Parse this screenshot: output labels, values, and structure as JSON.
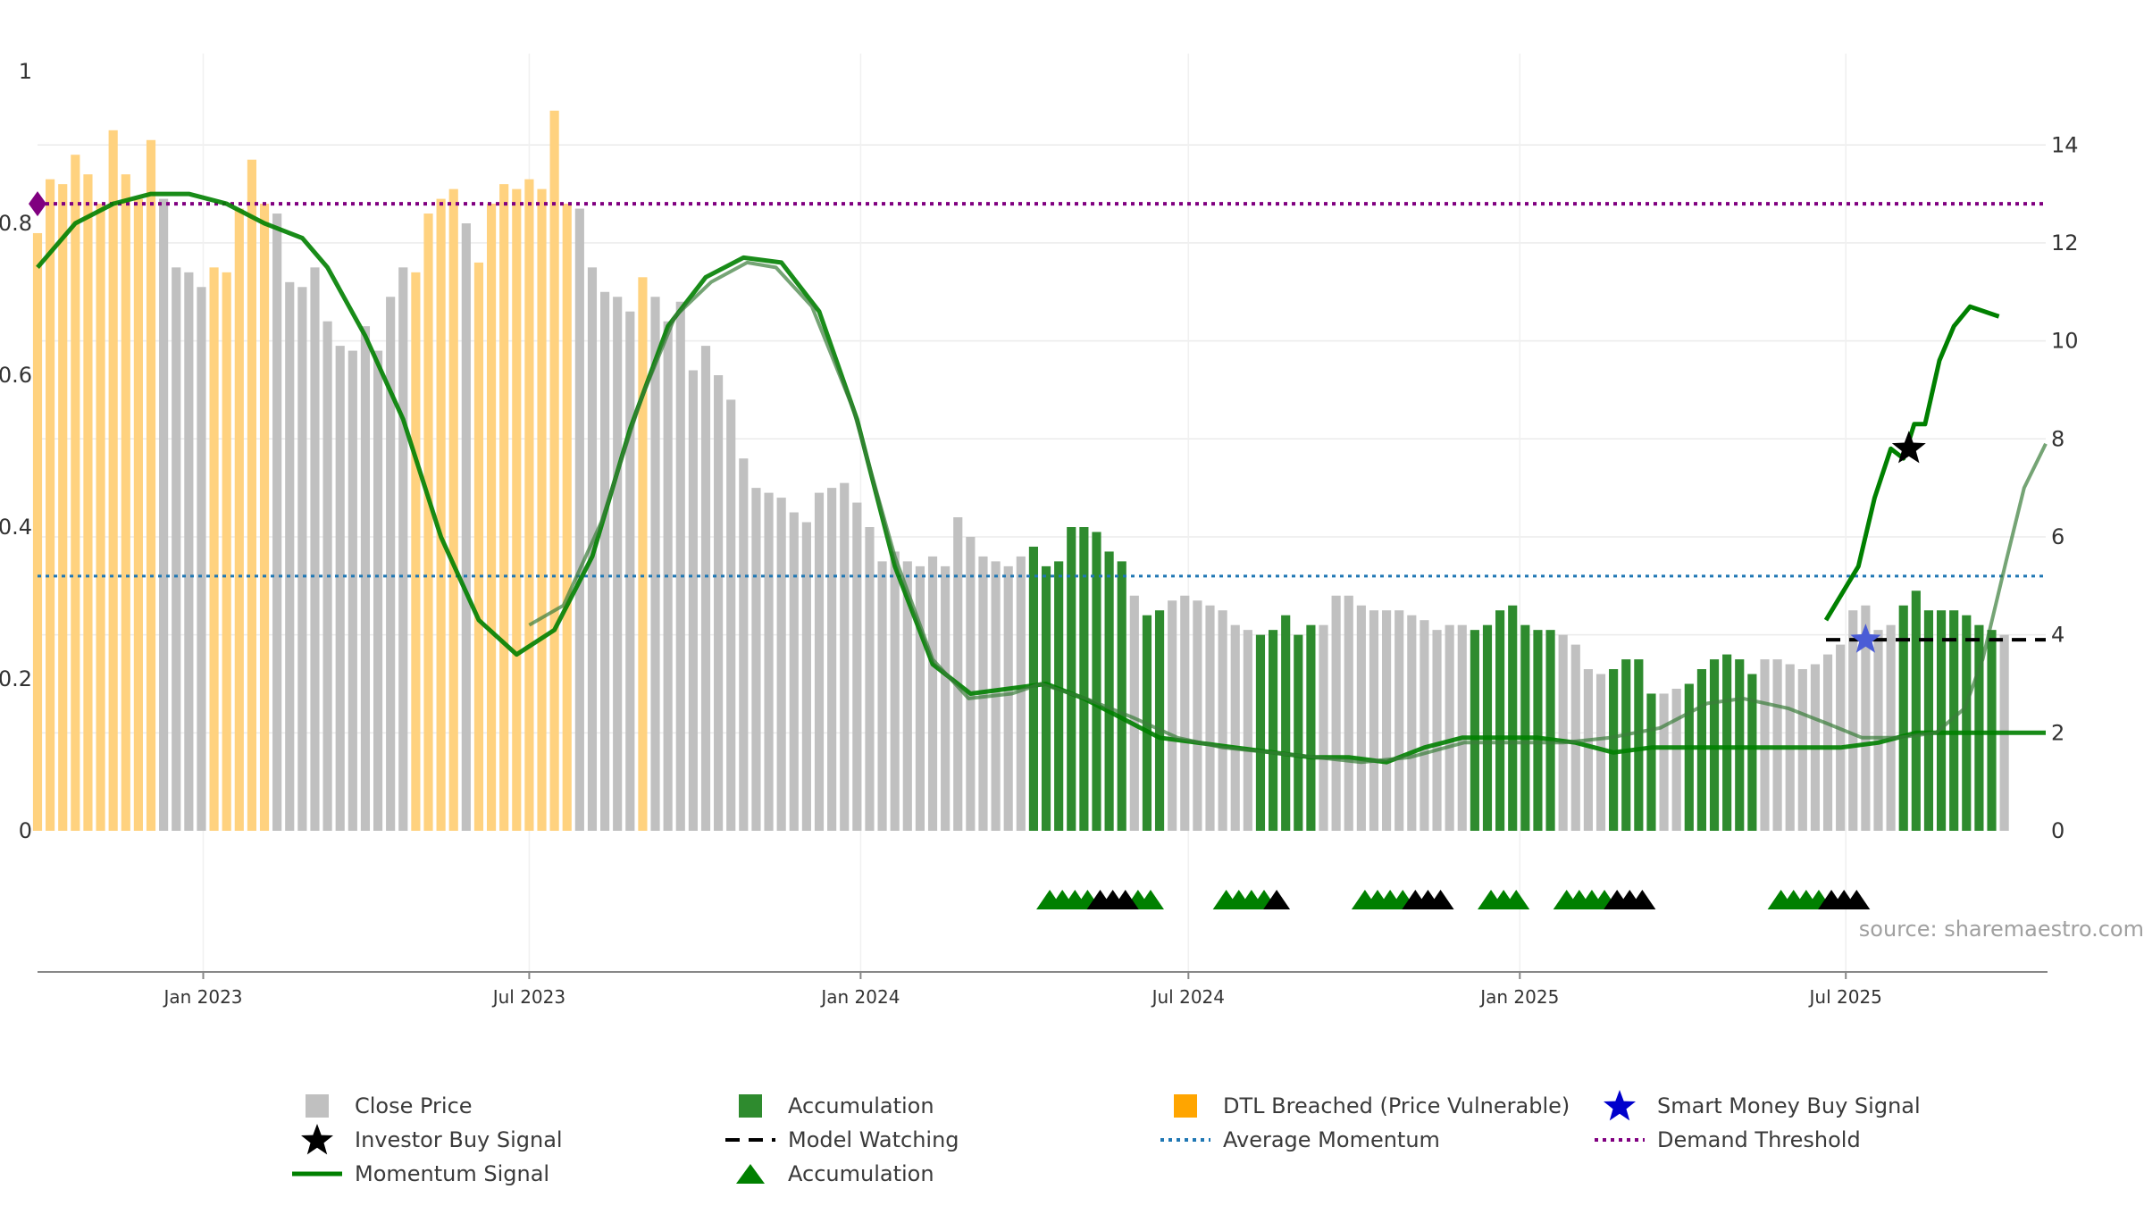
{
  "chart_data": {
    "type": "bar",
    "source_note": "source: sharemaestro.com",
    "left_axis": {
      "range": [
        0,
        1
      ],
      "ticks": [
        0,
        0.2,
        0.4,
        0.6,
        0.8,
        1
      ],
      "tick_labels": [
        "0",
        "0.2",
        "0.4",
        "0.6",
        "0.8",
        "1"
      ]
    },
    "right_axis": {
      "range": [
        0,
        15.5
      ],
      "ticks": [
        0,
        2,
        4,
        6,
        8,
        10,
        12,
        14
      ],
      "tick_labels": [
        "0",
        "2",
        "4",
        "6",
        "8",
        "10",
        "12",
        "14"
      ]
    },
    "x_axis": {
      "start": "2022-10-01",
      "end": "2025-10-20",
      "ticks": [
        "2023-01-01",
        "2023-07-01",
        "2024-01-01",
        "2024-07-01",
        "2025-01-01",
        "2025-07-01"
      ],
      "tick_labels": [
        "Jan 2023",
        "Jul 2023",
        "Jan 2024",
        "Jul 2024",
        "Jan 2025",
        "Jul 2025"
      ]
    },
    "grid": true,
    "legend_placement": "bottom",
    "colors": {
      "close": "#c0c0c0",
      "accumulation": "#2e8b2e",
      "dtl": "#ffd27f",
      "momentum": "#008000",
      "average": "#1f77b4",
      "threshold": "#800080",
      "smart_star": "#0000cc",
      "investor_star": "#000000",
      "watching": "#000000"
    },
    "close_price": {
      "name": "Close Price",
      "start": "2022-10-01",
      "step_days": 7,
      "states": "DDDDDDDDDDCCCCDDDDDCCCCCCCCCCCDDDDCDDDDDDDDCCCCCDCCCCCCCCCCCCCCCCCCCCCCCCCCCCCCAAAAAAAACAACCCCCCCAAAAACCCCCCCCCCCCAAAAAAACCCCAAAACCAAAAAACCCCCCCCCCCAAAAAAAACCCCCCCCCCC",
      "values": [
        12.2,
        13.3,
        13.2,
        13.8,
        13.4,
        12.8,
        14.3,
        13.4,
        12.9,
        14.1,
        12.9,
        11.5,
        11.4,
        11.1,
        11.5,
        11.4,
        12.7,
        13.7,
        12.8,
        12.6,
        11.2,
        11.1,
        11.5,
        10.4,
        9.9,
        9.8,
        10.3,
        9.8,
        10.9,
        11.5,
        11.4,
        12.6,
        12.9,
        13.1,
        12.4,
        11.6,
        12.8,
        13.2,
        13.1,
        13.3,
        13.1,
        14.7,
        12.8,
        12.7,
        11.5,
        11.0,
        10.9,
        10.6,
        11.3,
        10.9,
        10.4,
        10.8,
        9.4,
        9.9,
        9.3,
        8.8,
        7.6,
        7.0,
        6.9,
        6.8,
        6.5,
        6.3,
        6.9,
        7.0,
        7.1,
        6.7,
        6.2,
        5.5,
        5.7,
        5.5,
        5.4,
        5.6,
        5.4,
        6.4,
        6.0,
        5.6,
        5.5,
        5.4,
        5.6,
        5.8,
        5.4,
        5.5,
        6.2,
        6.2,
        6.1,
        5.7,
        5.5,
        4.8,
        4.4,
        4.5,
        4.7,
        4.8,
        4.7,
        4.6,
        4.5,
        4.2,
        4.1,
        4.0,
        4.1,
        4.4,
        4.0,
        4.2,
        4.2,
        4.8,
        4.8,
        4.6,
        4.5,
        4.5,
        4.5,
        4.4,
        4.3,
        4.1,
        4.2,
        4.2,
        4.1,
        4.2,
        4.5,
        4.6,
        4.2,
        4.1,
        4.1,
        4.0,
        3.8,
        3.3,
        3.2,
        3.3,
        3.5,
        3.5,
        2.8,
        2.8,
        2.9,
        3.0,
        3.3,
        3.5,
        3.6,
        3.5,
        3.2,
        3.5,
        3.5,
        3.4,
        3.3,
        3.4,
        3.6,
        3.8,
        4.5,
        4.6,
        4.1,
        4.2,
        4.6,
        4.9,
        4.5,
        4.5,
        4.5,
        4.4,
        4.2,
        4.1,
        4.0
      ]
    },
    "momentum": {
      "name": "Momentum Signal",
      "points": [
        [
          "2022-10-01",
          11.5
        ],
        [
          "2022-10-22",
          12.4
        ],
        [
          "2022-11-12",
          12.8
        ],
        [
          "2022-12-03",
          13.0
        ],
        [
          "2022-12-24",
          13.0
        ],
        [
          "2023-01-14",
          12.8
        ],
        [
          "2023-02-04",
          12.4
        ],
        [
          "2023-02-25",
          12.1
        ],
        [
          "2023-03-11",
          11.5
        ],
        [
          "2023-04-01",
          10.1
        ],
        [
          "2023-04-22",
          8.4
        ],
        [
          "2023-05-13",
          6.0
        ],
        [
          "2023-06-03",
          4.3
        ],
        [
          "2023-06-24",
          3.6
        ],
        [
          "2023-07-15",
          4.1
        ],
        [
          "2023-08-05",
          5.6
        ],
        [
          "2023-08-26",
          8.2
        ],
        [
          "2023-09-16",
          10.3
        ],
        [
          "2023-10-07",
          11.3
        ],
        [
          "2023-10-28",
          11.7
        ],
        [
          "2023-11-18",
          11.6
        ],
        [
          "2023-12-09",
          10.6
        ],
        [
          "2023-12-30",
          8.4
        ],
        [
          "2024-01-20",
          5.4
        ],
        [
          "2024-02-10",
          3.4
        ],
        [
          "2024-03-02",
          2.8
        ],
        [
          "2024-03-23",
          2.9
        ],
        [
          "2024-04-13",
          3.0
        ],
        [
          "2024-05-04",
          2.7
        ],
        [
          "2024-05-25",
          2.3
        ],
        [
          "2024-06-15",
          1.9
        ],
        [
          "2024-07-06",
          1.8
        ],
        [
          "2024-07-27",
          1.7
        ],
        [
          "2024-08-17",
          1.6
        ],
        [
          "2024-09-07",
          1.5
        ],
        [
          "2024-09-28",
          1.5
        ],
        [
          "2024-10-19",
          1.4
        ],
        [
          "2024-11-09",
          1.7
        ],
        [
          "2024-11-30",
          1.9
        ],
        [
          "2024-12-21",
          1.9
        ],
        [
          "2025-01-11",
          1.9
        ],
        [
          "2025-02-01",
          1.8
        ],
        [
          "2025-02-22",
          1.6
        ],
        [
          "2025-03-15",
          1.7
        ],
        [
          "2025-04-05",
          1.7
        ],
        [
          "2025-04-26",
          1.7
        ],
        [
          "2025-05-17",
          1.7
        ],
        [
          "2025-06-07",
          1.7
        ],
        [
          "2025-06-28",
          1.7
        ],
        [
          "2025-07-19",
          1.8
        ],
        [
          "2025-08-09",
          2.0
        ],
        [
          "2025-08-30",
          2.0
        ],
        [
          "2025-09-20",
          2.0
        ],
        [
          "2025-10-11",
          2.0
        ],
        [
          "2025-10-20",
          2.0
        ]
      ],
      "overlay_points": [
        [
          "2023-07-01",
          4.2
        ],
        [
          "2023-07-20",
          4.6
        ],
        [
          "2023-08-10",
          6.3
        ],
        [
          "2023-09-01",
          8.8
        ],
        [
          "2023-09-20",
          10.5
        ],
        [
          "2023-10-10",
          11.2
        ],
        [
          "2023-10-30",
          11.6
        ],
        [
          "2023-11-15",
          11.5
        ],
        [
          "2023-12-05",
          10.7
        ],
        [
          "2023-12-28",
          8.6
        ],
        [
          "2024-01-20",
          5.6
        ],
        [
          "2024-02-10",
          3.5
        ],
        [
          "2024-03-01",
          2.7
        ],
        [
          "2024-03-25",
          2.8
        ],
        [
          "2024-04-10",
          3.0
        ],
        [
          "2024-05-05",
          2.7
        ],
        [
          "2024-06-01",
          2.3
        ],
        [
          "2024-06-25",
          1.9
        ],
        [
          "2024-07-20",
          1.7
        ],
        [
          "2024-08-15",
          1.6
        ],
        [
          "2024-09-10",
          1.5
        ],
        [
          "2024-10-05",
          1.4
        ],
        [
          "2024-11-01",
          1.5
        ],
        [
          "2024-12-01",
          1.8
        ],
        [
          "2024-12-28",
          1.8
        ],
        [
          "2025-01-25",
          1.8
        ],
        [
          "2025-02-20",
          1.9
        ],
        [
          "2025-03-20",
          2.1
        ],
        [
          "2025-04-15",
          2.6
        ],
        [
          "2025-05-05",
          2.7
        ],
        [
          "2025-05-30",
          2.5
        ],
        [
          "2025-06-20",
          2.2
        ],
        [
          "2025-07-10",
          1.9
        ],
        [
          "2025-07-30",
          1.9
        ],
        [
          "2025-08-20",
          2.0
        ],
        [
          "2025-09-05",
          2.5
        ],
        [
          "2025-09-15",
          3.5
        ],
        [
          "2025-09-28",
          5.5
        ],
        [
          "2025-10-08",
          7.0
        ],
        [
          "2025-10-20",
          7.9
        ]
      ]
    },
    "right_momentum_line": {
      "points": [
        [
          "2023-06-28",
          4.0
        ],
        [
          "2023-07-10",
          4.3
        ],
        [
          "2025-06-20",
          4.3
        ],
        [
          "2025-07-08",
          5.4
        ],
        [
          "2025-07-17",
          6.8
        ],
        [
          "2025-07-26",
          7.8
        ],
        [
          "2025-08-02",
          7.6
        ],
        [
          "2025-08-08",
          8.3
        ],
        [
          "2025-08-14",
          8.3
        ],
        [
          "2025-08-22",
          9.6
        ],
        [
          "2025-08-30",
          10.3
        ],
        [
          "2025-09-08",
          10.7
        ],
        [
          "2025-09-16",
          10.6
        ],
        [
          "2025-09-24",
          10.5
        ]
      ]
    },
    "average_momentum": {
      "name": "Average Momentum",
      "value": 5.2
    },
    "demand_threshold": {
      "name": "Demand Threshold",
      "value": 12.8
    },
    "model_watching": {
      "name": "Model Watching",
      "from": "2025-06-20",
      "to": "2025-10-20",
      "value": 3.9
    },
    "investor_buy_signal": {
      "name": "Investor Buy Signal",
      "date": "2025-08-05",
      "value": 7.8
    },
    "smart_money_buy_signal": {
      "name": "Smart Money Buy Signal",
      "date": "2025-07-12",
      "value": 3.9
    },
    "accumulation_markers": {
      "name": "Accumulation",
      "green": [
        "2024-04-15",
        "2024-04-22",
        "2024-04-29",
        "2024-05-06",
        "2024-06-03",
        "2024-06-10",
        "2024-07-22",
        "2024-07-29",
        "2024-08-05",
        "2024-08-12",
        "2024-10-07",
        "2024-10-14",
        "2024-10-21",
        "2024-10-28",
        "2024-12-16",
        "2024-12-23",
        "2024-12-30",
        "2025-01-27",
        "2025-02-03",
        "2025-02-10",
        "2025-02-17",
        "2025-05-26",
        "2025-06-02",
        "2025-06-09",
        "2025-06-16"
      ],
      "black": [
        "2024-05-13",
        "2024-05-20",
        "2024-05-27",
        "2024-08-19",
        "2024-11-04",
        "2024-11-11",
        "2024-11-18",
        "2025-02-24",
        "2025-03-03",
        "2025-03-10",
        "2025-06-23",
        "2025-06-30",
        "2025-07-07"
      ]
    }
  },
  "legend": {
    "close_price": "Close Price",
    "accumulation_bar": "Accumulation",
    "dtl": "DTL Breached (Price Vulnerable)",
    "smart_money": "Smart Money Buy Signal",
    "investor": "Investor Buy Signal",
    "model_watching": "Model Watching",
    "avg_momentum": "Average Momentum",
    "demand_threshold": "Demand Threshold",
    "momentum_signal": "Momentum Signal",
    "accumulation_marker": "Accumulation"
  }
}
